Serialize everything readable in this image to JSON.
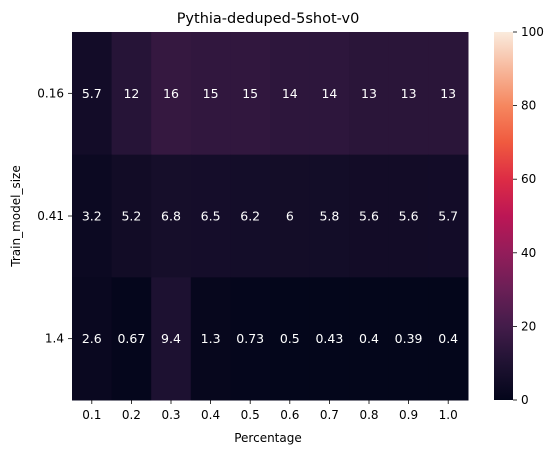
{
  "chart_data": {
    "type": "heatmap",
    "title": "Pythia-deduped-5shot-v0",
    "xlabel": "Percentage",
    "ylabel": "Train_model_size",
    "x_categories": [
      "0.1",
      "0.2",
      "0.3",
      "0.4",
      "0.5",
      "0.6",
      "0.7",
      "0.8",
      "0.9",
      "1.0"
    ],
    "y_categories": [
      "0.16",
      "0.41",
      "1.4"
    ],
    "values": [
      [
        5.7,
        12,
        16,
        15,
        15,
        14,
        14,
        13,
        13,
        13
      ],
      [
        3.2,
        5.2,
        6.8,
        6.5,
        6.2,
        6,
        5.8,
        5.6,
        5.6,
        5.7
      ],
      [
        2.6,
        0.67,
        9.4,
        1.3,
        0.73,
        0.5,
        0.43,
        0.4,
        0.39,
        0.4
      ]
    ],
    "annotations": [
      [
        "5.7",
        "12",
        "16",
        "15",
        "15",
        "14",
        "14",
        "13",
        "13",
        "13"
      ],
      [
        "3.2",
        "5.2",
        "6.8",
        "6.5",
        "6.2",
        "6",
        "5.8",
        "5.6",
        "5.6",
        "5.7"
      ],
      [
        "2.6",
        "0.67",
        "9.4",
        "1.3",
        "0.73",
        "0.5",
        "0.43",
        "0.4",
        "0.39",
        "0.4"
      ]
    ],
    "colorbar": {
      "range": [
        0,
        100
      ],
      "ticks": [
        "0",
        "20",
        "40",
        "60",
        "80",
        "100"
      ],
      "colormap": "rocket"
    }
  }
}
